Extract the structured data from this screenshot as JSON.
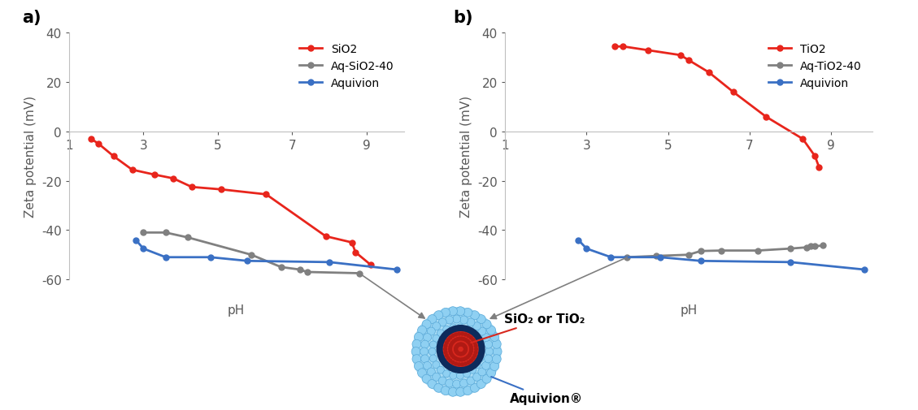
{
  "chart_data": [
    {
      "type": "line",
      "title": "a)",
      "x_label": "pH",
      "y_label": "Zeta potential (mV)",
      "xlim": [
        1,
        10
      ],
      "xticks": [
        1,
        3,
        5,
        7,
        9
      ],
      "ylim": [
        -60,
        40
      ],
      "yticks": [
        -60,
        -40,
        -20,
        0,
        20,
        40
      ],
      "grid": false,
      "legend": "upper right",
      "marker": "o",
      "line_style": "solid",
      "series": [
        {
          "name": "SiO2",
          "color": "#e8251c",
          "x": [
            1.6,
            1.8,
            2.2,
            2.7,
            3.3,
            3.8,
            4.3,
            5.1,
            6.3,
            7.9,
            8.6,
            8.7,
            9.1
          ],
          "values": [
            -3,
            -5,
            -10,
            -15.5,
            -17.5,
            -19,
            -22.5,
            -23.5,
            -25.5,
            -42.5,
            -45,
            -49,
            -54
          ]
        },
        {
          "name": "Aq-SiO2-40",
          "color": "#808080",
          "x": [
            3.0,
            3.6,
            4.2,
            5.9,
            6.7,
            7.2,
            7.4,
            8.8
          ],
          "values": [
            -41,
            -41,
            -43,
            -50,
            -55,
            -56,
            -57,
            -57.5
          ]
        },
        {
          "name": "Aquivion",
          "color": "#3a70c4",
          "x": [
            2.8,
            3.0,
            3.6,
            4.8,
            5.8,
            8.0,
            9.8
          ],
          "values": [
            -44,
            -47.5,
            -51,
            -51,
            -52.5,
            -53,
            -56
          ]
        }
      ]
    },
    {
      "type": "line",
      "title": "b)",
      "x_label": "pH",
      "y_label": "Zeta potential (mV)",
      "xlim": [
        1,
        10
      ],
      "xticks": [
        1,
        3,
        5,
        7,
        9
      ],
      "ylim": [
        -60,
        40
      ],
      "yticks": [
        -60,
        -40,
        -20,
        0,
        20,
        40
      ],
      "grid": false,
      "legend": "upper right",
      "marker": "o",
      "line_style": "solid",
      "series": [
        {
          "name": "TiO2",
          "color": "#e8251c",
          "x": [
            3.7,
            3.9,
            4.5,
            5.3,
            5.5,
            6.0,
            6.6,
            7.4,
            8.3,
            8.6,
            8.7
          ],
          "values": [
            34.5,
            34.5,
            33,
            31,
            29,
            24,
            16,
            6,
            -3,
            -10,
            -14.5
          ]
        },
        {
          "name": "Aq-TiO2-40",
          "color": "#808080",
          "x": [
            4.0,
            4.7,
            5.5,
            5.8,
            6.3,
            7.2,
            8.0,
            8.4,
            8.5,
            8.6,
            8.8
          ],
          "values": [
            -51,
            -50.5,
            -50,
            -48.5,
            -48.3,
            -48.3,
            -47.5,
            -47,
            -46.5,
            -46.5,
            -46.3
          ]
        },
        {
          "name": "Aquivion",
          "color": "#3a70c4",
          "x": [
            2.8,
            3.0,
            3.6,
            4.8,
            5.8,
            8.0,
            9.8
          ],
          "values": [
            -44,
            -47.5,
            -51,
            -51,
            -52.5,
            -53,
            -56
          ]
        }
      ]
    }
  ],
  "diagram": {
    "core_label": "SiO₂ or TiO₂",
    "shell_label": "Aquivion®"
  }
}
